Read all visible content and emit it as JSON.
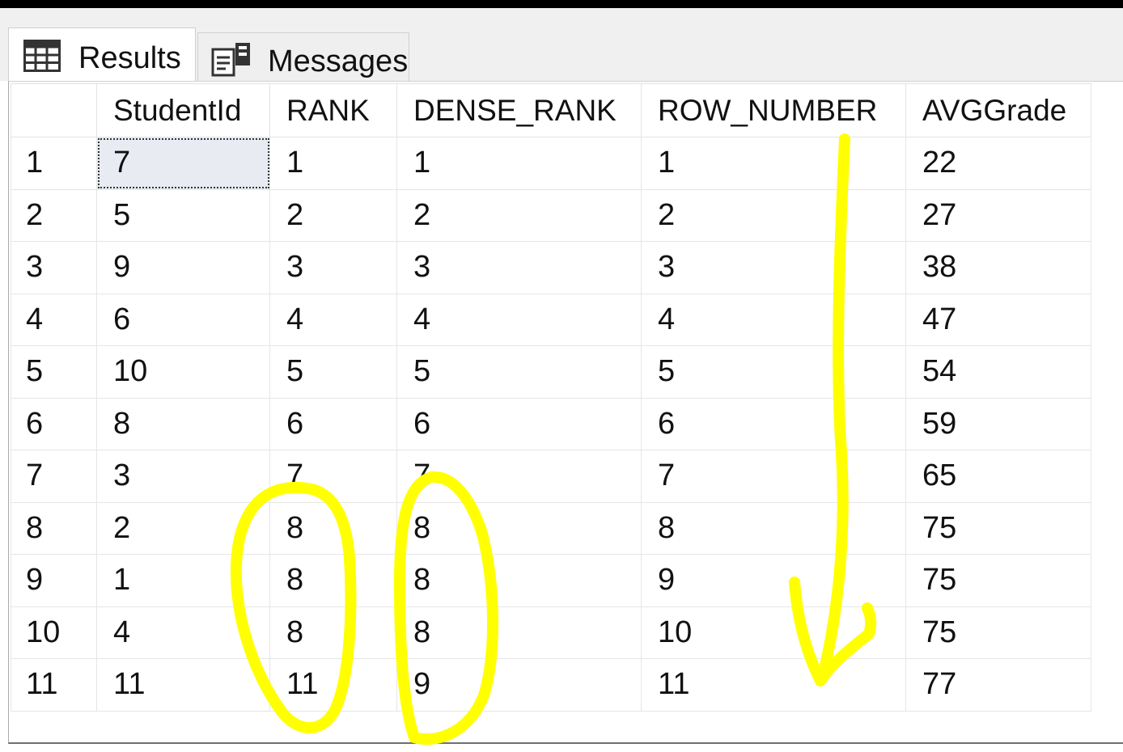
{
  "tabs": [
    {
      "label": "Results",
      "icon": "grid-icon",
      "active": true
    },
    {
      "label": "Messages",
      "icon": "messages-icon",
      "active": false
    }
  ],
  "grid": {
    "columns": [
      "StudentId",
      "RANK",
      "DENSE_RANK",
      "ROW_NUMBER",
      "AVGGrade"
    ],
    "rows": [
      {
        "num": "1",
        "cells": [
          "7",
          "1",
          "1",
          "1",
          "22"
        ]
      },
      {
        "num": "2",
        "cells": [
          "5",
          "2",
          "2",
          "2",
          "27"
        ]
      },
      {
        "num": "3",
        "cells": [
          "9",
          "3",
          "3",
          "3",
          "38"
        ]
      },
      {
        "num": "4",
        "cells": [
          "6",
          "4",
          "4",
          "4",
          "47"
        ]
      },
      {
        "num": "5",
        "cells": [
          "10",
          "5",
          "5",
          "5",
          "54"
        ]
      },
      {
        "num": "6",
        "cells": [
          "8",
          "6",
          "6",
          "6",
          "59"
        ]
      },
      {
        "num": "7",
        "cells": [
          "3",
          "7",
          "7",
          "7",
          "65"
        ]
      },
      {
        "num": "8",
        "cells": [
          "2",
          "8",
          "8",
          "8",
          "75"
        ]
      },
      {
        "num": "9",
        "cells": [
          "1",
          "8",
          "8",
          "9",
          "75"
        ]
      },
      {
        "num": "10",
        "cells": [
          "4",
          "8",
          "8",
          "10",
          "75"
        ]
      },
      {
        "num": "11",
        "cells": [
          "11",
          "11",
          "9",
          "11",
          "77"
        ]
      }
    ],
    "selected_cell": {
      "row": 0,
      "column": "StudentId"
    }
  },
  "annotation": {
    "color": "#ffff00",
    "marks": [
      "rank-circle",
      "dense-rank-circle",
      "row-number-down-arrow"
    ]
  }
}
